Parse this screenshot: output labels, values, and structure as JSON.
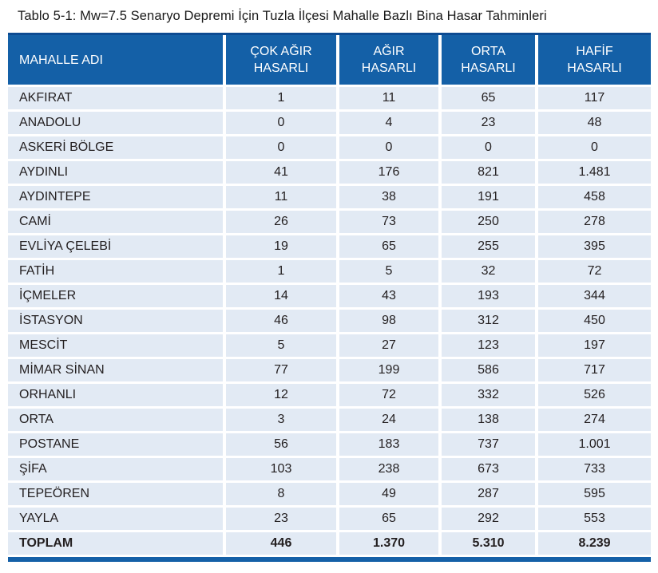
{
  "title": "Tablo 5-1: Mw=7.5 Senaryo Depremi İçin Tuzla İlçesi Mahalle Bazlı Bina Hasar Tahminleri",
  "colors": {
    "header_bg": "#1460A7",
    "header_top_edge": "#0D4B92",
    "row_bg": "#E2EAF4",
    "text": "#231F20",
    "header_text": "#FFFFFF"
  },
  "table": {
    "columns": {
      "name": "MAHALLE ADI",
      "col1": "ÇOK AĞIR\nHASARLI",
      "col2": "AĞIR\nHASARLI",
      "col3": "ORTA\nHASARLI",
      "col4": "HAFİF\nHASARLI"
    },
    "rows": [
      {
        "name": "AKFIRAT",
        "values": [
          "1",
          "11",
          "65",
          "117"
        ]
      },
      {
        "name": "ANADOLU",
        "values": [
          "0",
          "4",
          "23",
          "48"
        ]
      },
      {
        "name": "ASKERİ BÖLGE",
        "values": [
          "0",
          "0",
          "0",
          "0"
        ]
      },
      {
        "name": "AYDINLI",
        "values": [
          "41",
          "176",
          "821",
          "1.481"
        ]
      },
      {
        "name": "AYDINTEPE",
        "values": [
          "11",
          "38",
          "191",
          "458"
        ]
      },
      {
        "name": "CAMİ",
        "values": [
          "26",
          "73",
          "250",
          "278"
        ]
      },
      {
        "name": "EVLİYA ÇELEBİ",
        "values": [
          "19",
          "65",
          "255",
          "395"
        ]
      },
      {
        "name": "FATİH",
        "values": [
          "1",
          "5",
          "32",
          "72"
        ]
      },
      {
        "name": "İÇMELER",
        "values": [
          "14",
          "43",
          "193",
          "344"
        ]
      },
      {
        "name": "İSTASYON",
        "values": [
          "46",
          "98",
          "312",
          "450"
        ]
      },
      {
        "name": "MESCİT",
        "values": [
          "5",
          "27",
          "123",
          "197"
        ]
      },
      {
        "name": "MİMAR SİNAN",
        "values": [
          "77",
          "199",
          "586",
          "717"
        ]
      },
      {
        "name": "ORHANLI",
        "values": [
          "12",
          "72",
          "332",
          "526"
        ]
      },
      {
        "name": "ORTA",
        "values": [
          "3",
          "24",
          "138",
          "274"
        ]
      },
      {
        "name": "POSTANE",
        "values": [
          "56",
          "183",
          "737",
          "1.001"
        ]
      },
      {
        "name": "ŞİFA",
        "values": [
          "103",
          "238",
          "673",
          "733"
        ]
      },
      {
        "name": "TEPEÖREN",
        "values": [
          "8",
          "49",
          "287",
          "595"
        ]
      },
      {
        "name": "YAYLA",
        "values": [
          "23",
          "65",
          "292",
          "553"
        ]
      }
    ],
    "total": {
      "name": "TOPLAM",
      "values": [
        "446",
        "1.370",
        "5.310",
        "8.239"
      ]
    }
  },
  "chart_data": {
    "type": "table",
    "title": "Tablo 5-1: Mw=7.5 Senaryo Depremi İçin Tuzla İlçesi Mahalle Bazlı Bina Hasar Tahminleri",
    "columns": [
      "MAHALLE ADI",
      "ÇOK AĞIR HASARLI",
      "AĞIR HASARLI",
      "ORTA HASARLI",
      "HAFİF HASARLI"
    ],
    "rows": [
      [
        "AKFIRAT",
        1,
        11,
        65,
        117
      ],
      [
        "ANADOLU",
        0,
        4,
        23,
        48
      ],
      [
        "ASKERİ BÖLGE",
        0,
        0,
        0,
        0
      ],
      [
        "AYDINLI",
        41,
        176,
        821,
        1481
      ],
      [
        "AYDINTEPE",
        11,
        38,
        191,
        458
      ],
      [
        "CAMİ",
        26,
        73,
        250,
        278
      ],
      [
        "EVLİYA ÇELEBİ",
        19,
        65,
        255,
        395
      ],
      [
        "FATİH",
        1,
        5,
        32,
        72
      ],
      [
        "İÇMELER",
        14,
        43,
        193,
        344
      ],
      [
        "İSTASYON",
        46,
        98,
        312,
        450
      ],
      [
        "MESCİT",
        5,
        27,
        123,
        197
      ],
      [
        "MİMAR SİNAN",
        77,
        199,
        586,
        717
      ],
      [
        "ORHANLI",
        12,
        72,
        332,
        526
      ],
      [
        "ORTA",
        3,
        24,
        138,
        274
      ],
      [
        "POSTANE",
        56,
        183,
        737,
        1001
      ],
      [
        "ŞİFA",
        103,
        238,
        673,
        733
      ],
      [
        "TEPEÖREN",
        8,
        49,
        287,
        595
      ],
      [
        "YAYLA",
        23,
        65,
        292,
        553
      ],
      [
        "TOPLAM",
        446,
        1370,
        5310,
        8239
      ]
    ]
  }
}
